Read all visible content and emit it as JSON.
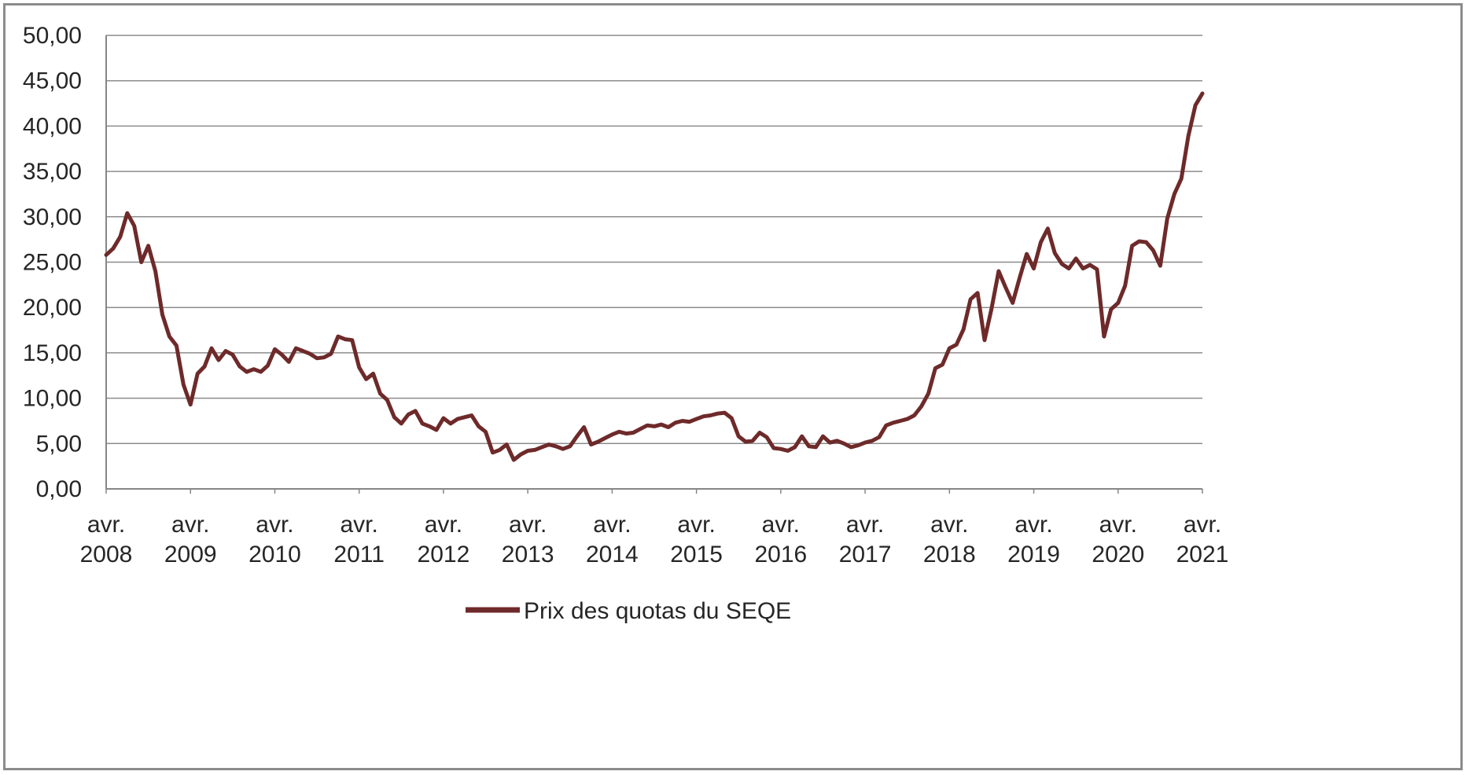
{
  "chart_data": {
    "type": "line",
    "title": "",
    "xlabel": "",
    "ylabel": "",
    "ylim": [
      0,
      50
    ],
    "grid": true,
    "legend_position": "bottom",
    "y_ticks": [
      "0,00",
      "5,00",
      "10,00",
      "15,00",
      "20,00",
      "25,00",
      "30,00",
      "35,00",
      "40,00",
      "45,00",
      "50,00"
    ],
    "x_ticks": [
      {
        "line1": "avr.",
        "line2": "2008"
      },
      {
        "line1": "avr.",
        "line2": "2009"
      },
      {
        "line1": "avr.",
        "line2": "2010"
      },
      {
        "line1": "avr.",
        "line2": "2011"
      },
      {
        "line1": "avr.",
        "line2": "2012"
      },
      {
        "line1": "avr.",
        "line2": "2013"
      },
      {
        "line1": "avr.",
        "line2": "2014"
      },
      {
        "line1": "avr.",
        "line2": "2015"
      },
      {
        "line1": "avr.",
        "line2": "2016"
      },
      {
        "line1": "avr.",
        "line2": "2017"
      },
      {
        "line1": "avr.",
        "line2": "2018"
      },
      {
        "line1": "avr.",
        "line2": "2019"
      },
      {
        "line1": "avr.",
        "line2": "2020"
      },
      {
        "line1": "avr.",
        "line2": "2021"
      }
    ],
    "series": [
      {
        "name": "Prix des quotas du SEQE",
        "color": "#6e2a2a",
        "x": [
          "2008-04",
          "2008-05",
          "2008-06",
          "2008-07",
          "2008-08",
          "2008-09",
          "2008-10",
          "2008-11",
          "2008-12",
          "2009-01",
          "2009-02",
          "2009-03",
          "2009-04",
          "2009-05",
          "2009-06",
          "2009-07",
          "2009-08",
          "2009-09",
          "2009-10",
          "2009-11",
          "2009-12",
          "2010-01",
          "2010-02",
          "2010-03",
          "2010-04",
          "2010-05",
          "2010-06",
          "2010-07",
          "2010-08",
          "2010-09",
          "2010-10",
          "2010-11",
          "2010-12",
          "2011-01",
          "2011-02",
          "2011-03",
          "2011-04",
          "2011-05",
          "2011-06",
          "2011-07",
          "2011-08",
          "2011-09",
          "2011-10",
          "2011-11",
          "2011-12",
          "2012-01",
          "2012-02",
          "2012-03",
          "2012-04",
          "2012-05",
          "2012-06",
          "2012-07",
          "2012-08",
          "2012-09",
          "2012-10",
          "2012-11",
          "2012-12",
          "2013-01",
          "2013-02",
          "2013-03",
          "2013-04",
          "2013-05",
          "2013-06",
          "2013-07",
          "2013-08",
          "2013-09",
          "2013-10",
          "2013-11",
          "2013-12",
          "2014-01",
          "2014-02",
          "2014-03",
          "2014-04",
          "2014-05",
          "2014-06",
          "2014-07",
          "2014-08",
          "2014-09",
          "2014-10",
          "2014-11",
          "2014-12",
          "2015-01",
          "2015-02",
          "2015-03",
          "2015-04",
          "2015-05",
          "2015-06",
          "2015-07",
          "2015-08",
          "2015-09",
          "2015-10",
          "2015-11",
          "2015-12",
          "2016-01",
          "2016-02",
          "2016-03",
          "2016-04",
          "2016-05",
          "2016-06",
          "2016-07",
          "2016-08",
          "2016-09",
          "2016-10",
          "2016-11",
          "2016-12",
          "2017-01",
          "2017-02",
          "2017-03",
          "2017-04",
          "2017-05",
          "2017-06",
          "2017-07",
          "2017-08",
          "2017-09",
          "2017-10",
          "2017-11",
          "2017-12",
          "2018-01",
          "2018-02",
          "2018-03",
          "2018-04",
          "2018-05",
          "2018-06",
          "2018-07",
          "2018-08",
          "2018-09",
          "2018-10",
          "2018-11",
          "2018-12",
          "2019-01",
          "2019-02",
          "2019-03",
          "2019-04",
          "2019-05",
          "2019-06",
          "2019-07",
          "2019-08",
          "2019-09",
          "2019-10",
          "2019-11",
          "2019-12",
          "2020-01",
          "2020-02",
          "2020-03",
          "2020-04",
          "2020-05",
          "2020-06",
          "2020-07",
          "2020-08",
          "2020-09",
          "2020-10",
          "2020-11",
          "2020-12",
          "2021-01",
          "2021-02",
          "2021-03",
          "2021-04"
        ],
        "values": [
          25.8,
          26.5,
          27.8,
          30.4,
          29.0,
          25.0,
          26.8,
          24.0,
          19.2,
          16.8,
          15.8,
          11.5,
          9.3,
          12.7,
          13.5,
          15.5,
          14.2,
          15.2,
          14.8,
          13.5,
          12.9,
          13.2,
          12.9,
          13.6,
          15.4,
          14.8,
          14.0,
          15.5,
          15.2,
          14.9,
          14.4,
          14.5,
          14.9,
          16.8,
          16.5,
          16.4,
          13.4,
          12.1,
          12.7,
          10.5,
          9.8,
          7.9,
          7.2,
          8.2,
          8.6,
          7.2,
          6.9,
          6.5,
          7.8,
          7.2,
          7.7,
          7.9,
          8.1,
          6.9,
          6.3,
          4.0,
          4.3,
          4.9,
          3.2,
          3.8,
          4.2,
          4.3,
          4.6,
          4.9,
          4.7,
          4.4,
          4.7,
          5.8,
          6.8,
          4.9,
          5.2,
          5.6,
          6.0,
          6.3,
          6.1,
          6.2,
          6.6,
          7.0,
          6.9,
          7.1,
          6.8,
          7.3,
          7.5,
          7.4,
          7.7,
          8.0,
          8.1,
          8.3,
          8.4,
          7.8,
          5.8,
          5.2,
          5.3,
          6.2,
          5.7,
          4.5,
          4.4,
          4.2,
          4.6,
          5.8,
          4.7,
          4.6,
          5.8,
          5.1,
          5.3,
          5.0,
          4.6,
          4.8,
          5.1,
          5.3,
          5.7,
          7.0,
          7.3,
          7.5,
          7.7,
          8.1,
          9.1,
          10.5,
          13.3,
          13.7,
          15.5,
          15.9,
          17.6,
          20.9,
          21.6,
          16.4,
          19.9,
          24.0,
          22.2,
          20.5,
          23.3,
          25.9,
          24.3,
          27.2,
          28.7,
          26.0,
          24.8,
          24.3,
          25.4,
          24.3,
          24.7,
          24.2,
          16.8,
          19.8,
          20.5,
          22.4,
          26.8,
          27.3,
          27.2,
          26.3,
          24.6,
          29.8,
          32.5,
          34.2,
          38.9,
          42.3,
          43.6
        ]
      }
    ]
  }
}
